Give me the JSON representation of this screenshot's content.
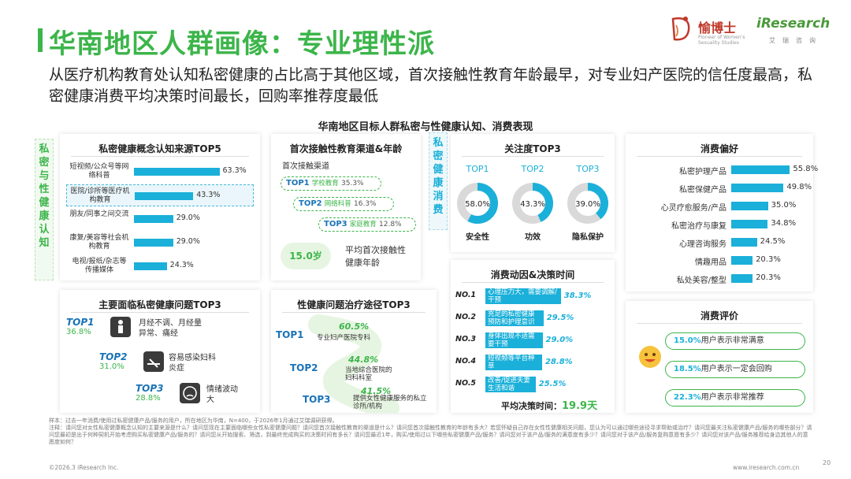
{
  "header": {
    "title": "华南地区人群画像：专业理性派",
    "subtitle": "从医疗机构教育处认知私密健康的占比高于其他区域，首次接触性教育年龄最早，对专业妇产医院的信任度最高，私密健康消费平均决策时间最长，回购率推荐度最低"
  },
  "logo": {
    "brand_cn": "愉博士",
    "brand_en": "Pioneer of Women's Sexuality Studies",
    "ir_name": "iResearch",
    "ir_cn": "艾瑞咨询"
  },
  "chart_title": "华南地区目标人群私密与性健康认知、消费表现",
  "side_labels": {
    "left": "私密与性健康认知",
    "middle": "私密健康消费"
  },
  "chart_data": [
    {
      "type": "bar",
      "title": "私密健康概念认知来源TOP5",
      "categories": [
        "短视频/公众号等网络科普",
        "医院/诊所等医疗机构教育",
        "朋友/同事之间交流",
        "康复/美容等社会机构教育",
        "电视/报纸/杂志等传播媒体"
      ],
      "values": [
        63.3,
        43.3,
        29.0,
        29.0,
        24.3
      ],
      "value_labels": [
        "63.3%",
        "43.3%",
        "29.0%",
        "29.0%",
        "24.3%"
      ],
      "highlight_index": 1
    },
    {
      "type": "table",
      "title": "首次接触性教育渠道&年龄",
      "subheader": "首次接触渠道",
      "rows": [
        {
          "rank": "TOP1",
          "channel": "学校教育",
          "value": 35.3,
          "label": "35.3%"
        },
        {
          "rank": "TOP2",
          "channel": "网络科普",
          "value": 16.3,
          "label": "16.3%"
        },
        {
          "rank": "TOP3",
          "channel": "家庭教育",
          "value": 12.8,
          "label": "12.8%"
        }
      ],
      "avg_age": "15.0岁",
      "avg_age_label": "平均首次接触性健康年龄"
    },
    {
      "type": "pie",
      "title": "关注度TOP3",
      "items": [
        {
          "rank": "TOP1",
          "name": "安全性",
          "value": 58.0,
          "label": "58.0%"
        },
        {
          "rank": "TOP2",
          "name": "功效",
          "value": 43.3,
          "label": "43.3%"
        },
        {
          "rank": "TOP3",
          "name": "隐私保护",
          "value": 39.0,
          "label": "39.0%"
        }
      ]
    },
    {
      "type": "bar",
      "title": "消费偏好",
      "categories": [
        "私密护理产品",
        "私密保健产品",
        "心灵疗愈服务/产品",
        "私密治疗与康复",
        "心理咨询服务",
        "情趣用品",
        "私处美容/整型"
      ],
      "values": [
        55.8,
        49.8,
        35.0,
        34.8,
        24.5,
        20.3,
        20.3
      ],
      "value_labels": [
        "55.8%",
        "49.8%",
        "35.0%",
        "34.8%",
        "24.5%",
        "20.3%",
        "20.3%"
      ]
    },
    {
      "type": "table",
      "title": "主要面临私密健康问题TOP3",
      "rows": [
        {
          "rank": "TOP1",
          "value": 36.8,
          "label": "36.8%",
          "issue": "月经不调、月经量异常、痛经"
        },
        {
          "rank": "TOP2",
          "value": 31.0,
          "label": "31.0%",
          "issue": "容易感染妇科炎症"
        },
        {
          "rank": "TOP3",
          "value": 28.8,
          "label": "28.8%",
          "issue": "情绪波动大"
        }
      ]
    },
    {
      "type": "table",
      "title": "性健康问题治疗途径TOP3",
      "rows": [
        {
          "rank": "TOP1",
          "value": 60.5,
          "label": "60.5%",
          "path": "专业妇产医院专科"
        },
        {
          "rank": "TOP2",
          "value": 44.8,
          "label": "44.8%",
          "path": "当地综合医院的妇科科室"
        },
        {
          "rank": "TOP3",
          "value": 41.5,
          "label": "41.5%",
          "path": "提供女性健康服务的私立诊所/机构"
        }
      ]
    },
    {
      "type": "bar",
      "title": "消费动因&决策时间",
      "categories": [
        "心理压力大，需要调解/干预",
        "充足的私密健康预防和护理意识",
        "身体出现不适需要干预",
        "短视频等平台种草",
        "改善/促进夫妻生活和谐"
      ],
      "ranks": [
        "NO.1",
        "NO.2",
        "NO.3",
        "NO.4",
        "NO.5"
      ],
      "values": [
        38.3,
        29.5,
        29.0,
        28.8,
        25.5
      ],
      "value_labels": [
        "38.3%",
        "29.5%",
        "29.0%",
        "28.8%",
        "25.5%"
      ],
      "avg_decision_label": "平均决策时间：",
      "avg_decision_value": "19.9天"
    },
    {
      "type": "table",
      "title": "消费评价",
      "rows": [
        {
          "value": 15.0,
          "label": "15.0%",
          "text": "用户表示非常满意"
        },
        {
          "value": 18.5,
          "label": "18.5%",
          "text": "用户表示一定会回购"
        },
        {
          "value": 22.3,
          "label": "22.3%",
          "text": "用户表示非常推荐"
        }
      ]
    }
  ],
  "footnote": {
    "sample": "样本：过去一年消费/使用过私密健康产品/服务的用户，所在地区为华南，N=400，于2026年1月通过艾瑞调研获得。",
    "note": "注释：请问您对女性私密健康概念认知的主要来源是什么？请问您现在主要面临哪些女性私密健康问题？请问您首次接触性教育的渠道是什么？请问您首次接触性教育的年龄有多大？若您怀疑自己存在女性性健康相关问题，您认为可以通过哪些途径寻求帮助或治疗？请问您最关注私密健康产品/服务的哪些部分？请问您最初是出于何种契机开始考虑购买私密健康产品/服务的？请问您从开始搜索、筛选，到最终完成购买的决策时间有多长？请问您最近1年，购买/使用过以下哪些私密健康产品/服务？请问您对于该产品/服务的满意度有多少？请问您对于该产品/服务复购意愿有多少？请问您对该产品/服务推荐给身边其他人的意愿度如何？"
  },
  "footer": {
    "copyright": "©2026.3 iResearch Inc.",
    "site": "www.iresearch.com.cn",
    "page": "20"
  }
}
